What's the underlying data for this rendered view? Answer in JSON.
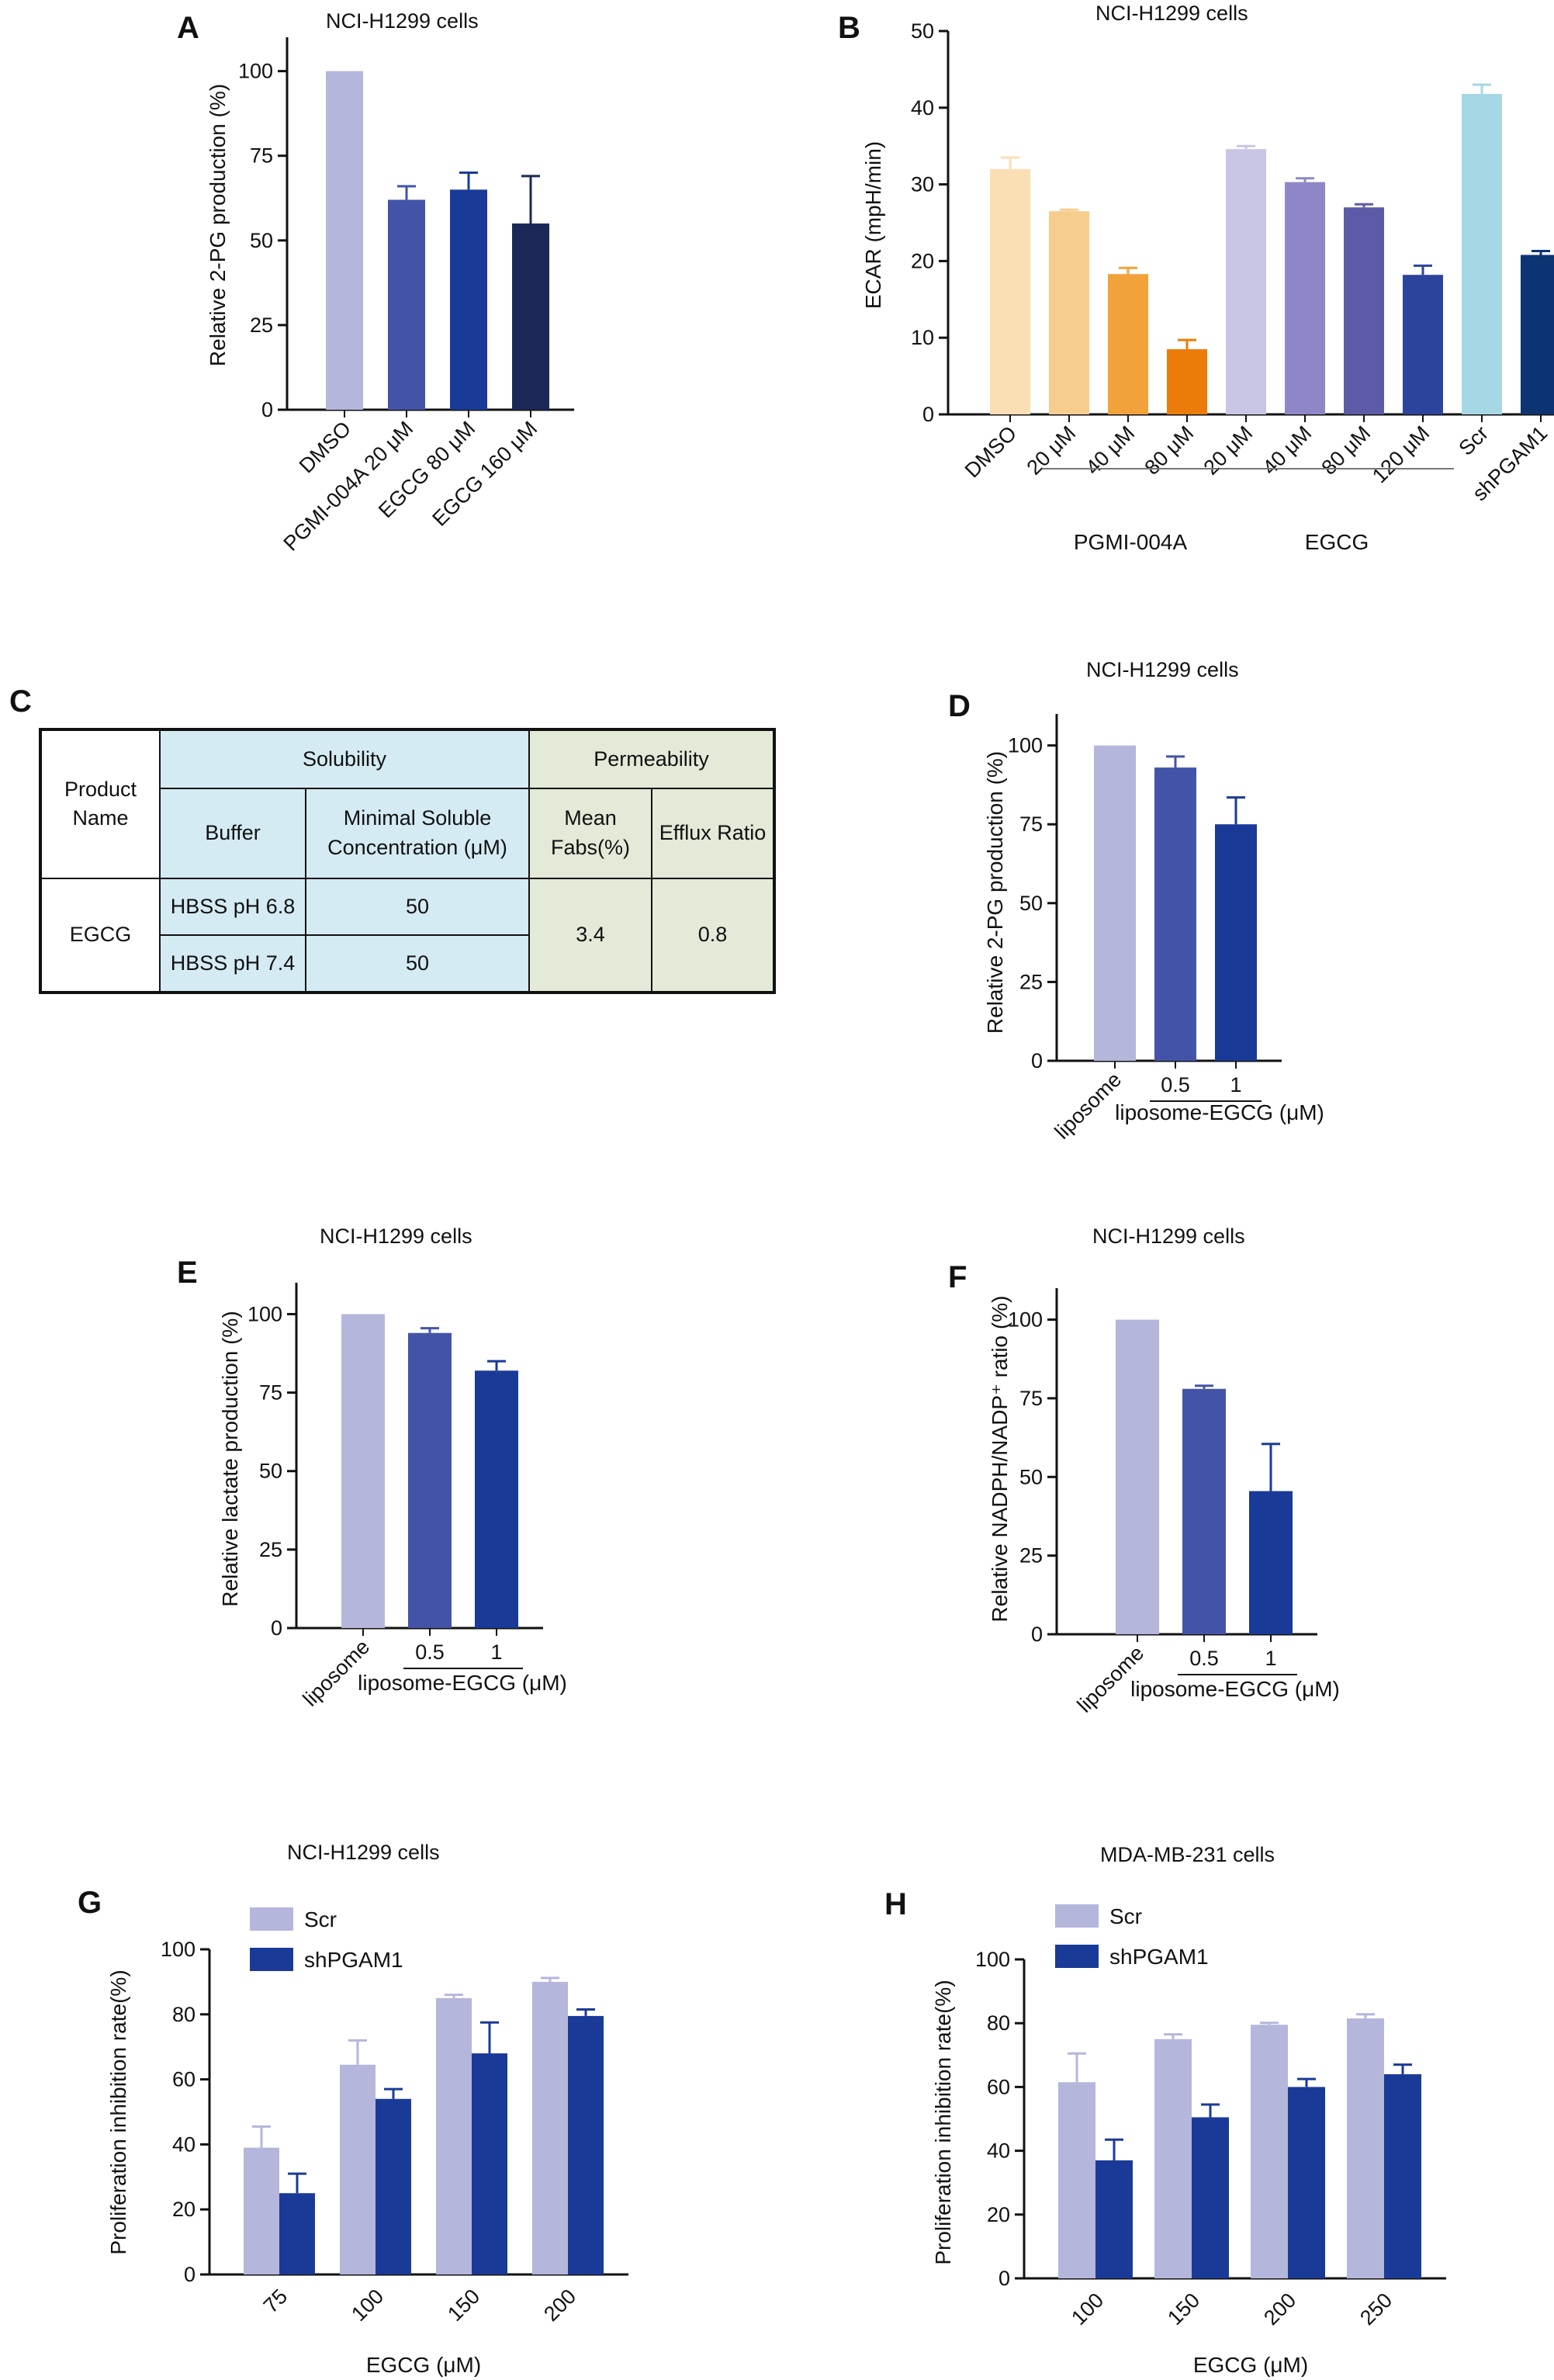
{
  "colors": {
    "lavender": "#b5b6dc",
    "blue_mid": "#4354a8",
    "blue": "#1a3a98",
    "navy": "#1c2958",
    "navy2": "#0c3473",
    "orange_light": "#fbdfb4",
    "orange_mid": "#f7cd8e",
    "orange": "#f2a23a",
    "orange_dark": "#ec7c09",
    "lav2": "#c9c5e5",
    "purple": "#8e87c7",
    "purple2": "#5c5ba8",
    "royal": "#2c449c",
    "sky": "#a5d8e4"
  },
  "panels": {
    "A": {
      "letter": "A"
    },
    "B": {
      "letter": "B",
      "group_labels": [
        "PGMI-004A",
        "EGCG"
      ]
    },
    "C": {
      "letter": "C",
      "table": {
        "product_header": "Product Name",
        "solubility_header": "Solubility",
        "permeability_header": "Permeability",
        "buffer_header": "Buffer",
        "min_sol_header": "Minimal Soluble Concentration (μM)",
        "mean_fabs_header": "Mean Fabs(%)",
        "efflux_header": "Efflux Ratio",
        "product": "EGCG",
        "rows": [
          {
            "buffer": "HBSS pH 6.8",
            "conc": "50"
          },
          {
            "buffer": "HBSS pH 7.4",
            "conc": "50"
          }
        ],
        "mean_fabs": "3.4",
        "efflux_ratio": "0.8"
      }
    },
    "D": {
      "letter": "D"
    },
    "E": {
      "letter": "E"
    },
    "F": {
      "letter": "F"
    },
    "G": {
      "letter": "G"
    },
    "H": {
      "letter": "H"
    }
  },
  "chart_data": [
    {
      "id": "A",
      "type": "bar",
      "title": "NCI-H1299  cells",
      "ylabel": "Relative 2-PG production (%)",
      "xlabel": "",
      "ylim": [
        0,
        110
      ],
      "yticks": [
        0,
        25,
        50,
        75,
        100
      ],
      "categories": [
        "DMSO",
        "PGMI-004A 20 μM",
        "EGCG 80 μM",
        "EGCG 160 μM"
      ],
      "values": [
        100,
        62,
        65,
        55
      ],
      "errors": [
        0,
        4,
        5,
        14
      ],
      "colors": [
        "#b5b6dc",
        "#4354a8",
        "#1a3a98",
        "#1c2958"
      ]
    },
    {
      "id": "B",
      "type": "bar",
      "title": "NCI-H1299 cells",
      "ylabel": "ECAR (mpH/min)",
      "xlabel": "",
      "ylim": [
        0,
        50
      ],
      "yticks": [
        0,
        10,
        20,
        30,
        40,
        50
      ],
      "categories": [
        "DMSO",
        "20 μM",
        "40 μM",
        "80 μM",
        "20 μM",
        "40 μM",
        "80 μM",
        "120 μM",
        "Scr",
        "shPGAM1"
      ],
      "values": [
        32,
        26.5,
        18.3,
        8.5,
        34.6,
        30.3,
        27,
        18.2,
        41.8,
        20.8
      ],
      "errors": [
        1.5,
        0.2,
        0.8,
        1.2,
        0.4,
        0.5,
        0.4,
        1.2,
        1.2,
        0.5
      ],
      "colors": [
        "#fbdfb4",
        "#f7cd8e",
        "#f2a23a",
        "#ec7c09",
        "#c9c5e5",
        "#8e87c7",
        "#5c5ba8",
        "#2c449c",
        "#a5d8e4",
        "#0c3473"
      ],
      "groups": [
        {
          "label": "PGMI-004A",
          "from": 1,
          "to": 3
        },
        {
          "label": "EGCG",
          "from": 4,
          "to": 7
        }
      ]
    },
    {
      "id": "D",
      "type": "bar",
      "title": "NCI-H1299 cells",
      "ylabel": "Relative 2-PG production (%)",
      "xlabel": "liposome-EGCG (μM)",
      "ylim": [
        0,
        110
      ],
      "yticks": [
        0,
        25,
        50,
        75,
        100
      ],
      "categories": [
        "liposome",
        "0.5",
        "1"
      ],
      "values": [
        100,
        93,
        75
      ],
      "errors": [
        0,
        3.5,
        8.5
      ],
      "colors": [
        "#b5b6dc",
        "#4354a8",
        "#1a3a98"
      ]
    },
    {
      "id": "E",
      "type": "bar",
      "title": "NCI-H1299  cells",
      "ylabel": "Relative lactate production (%)",
      "xlabel": "liposome-EGCG (μM)",
      "ylim": [
        0,
        110
      ],
      "yticks": [
        0,
        25,
        50,
        75,
        100
      ],
      "categories": [
        "liposome",
        "0.5",
        "1"
      ],
      "values": [
        100,
        94,
        82
      ],
      "errors": [
        0,
        1.5,
        3
      ],
      "colors": [
        "#b5b6dc",
        "#4354a8",
        "#1a3a98"
      ]
    },
    {
      "id": "F",
      "type": "bar",
      "title": "NCI-H1299 cells",
      "ylabel": "Relative NADPH/NADP⁺ ratio (%)",
      "xlabel": "liposome-EGCG (μM)",
      "ylim": [
        0,
        110
      ],
      "yticks": [
        0,
        25,
        50,
        75,
        100
      ],
      "categories": [
        "liposome",
        "0.5",
        "1"
      ],
      "values": [
        100,
        78,
        45.5
      ],
      "errors": [
        0,
        1,
        15
      ],
      "colors": [
        "#b5b6dc",
        "#4354a8",
        "#1a3a98"
      ]
    },
    {
      "id": "G",
      "type": "bar",
      "title": "NCI-H1299 cells",
      "ylabel": "Proliferation inhibition rate(%)",
      "xlabel": "EGCG (μM)",
      "ylim": [
        0,
        100
      ],
      "yticks": [
        0,
        20,
        40,
        60,
        80,
        100
      ],
      "categories": [
        "75",
        "100",
        "150",
        "200"
      ],
      "series": [
        {
          "name": "Scr",
          "values": [
            39,
            64.5,
            85,
            90
          ],
          "errors": [
            6.5,
            7.5,
            1,
            1.2
          ],
          "color": "#b5b6dc"
        },
        {
          "name": "shPGAM1",
          "values": [
            25,
            54,
            68,
            79.5
          ],
          "errors": [
            6,
            3,
            9.5,
            2
          ],
          "color": "#1a3a98"
        }
      ]
    },
    {
      "id": "H",
      "type": "bar",
      "title": "MDA-MB-231 cells",
      "ylabel": "Proliferation inhibition rate(%)",
      "xlabel": "EGCG (μM)",
      "ylim": [
        0,
        100
      ],
      "yticks": [
        0,
        20,
        40,
        60,
        80,
        100
      ],
      "categories": [
        "100",
        "150",
        "200",
        "250"
      ],
      "series": [
        {
          "name": "Scr",
          "values": [
            61.5,
            75,
            79.5,
            81.5
          ],
          "errors": [
            9,
            1.5,
            0.6,
            1.3
          ],
          "color": "#b5b6dc"
        },
        {
          "name": "shPGAM1",
          "values": [
            37,
            50.5,
            60,
            64
          ],
          "errors": [
            6.5,
            4,
            2.5,
            3
          ],
          "color": "#1a3a98"
        }
      ]
    }
  ]
}
